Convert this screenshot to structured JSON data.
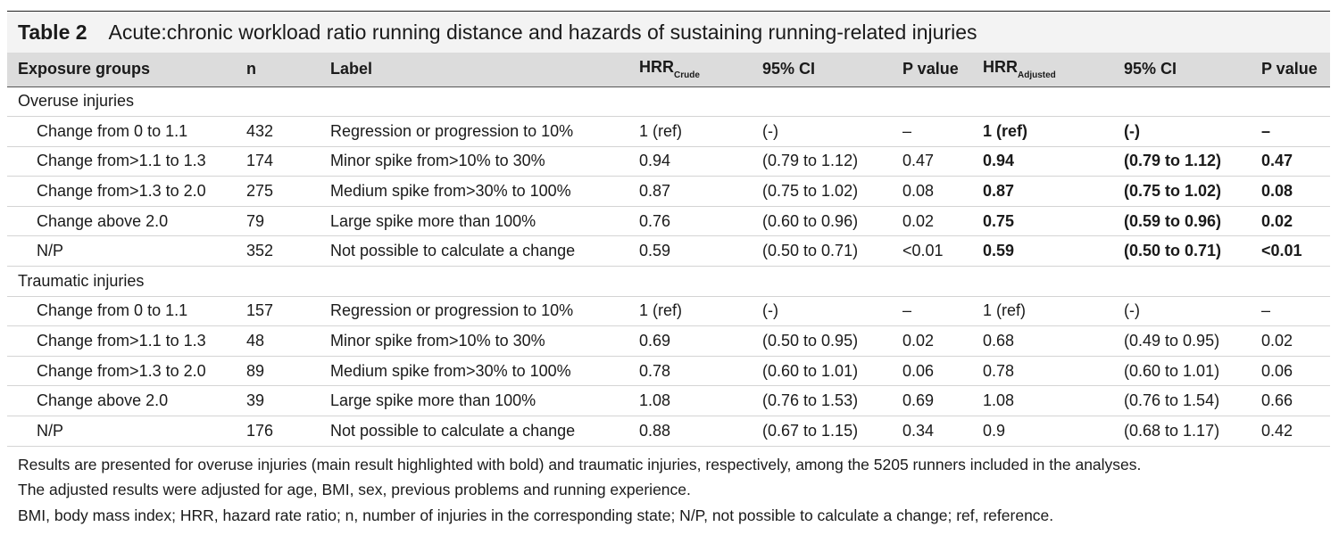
{
  "caption": {
    "label": "Table 2",
    "title": "Acute:chronic workload ratio running distance and hazards of sustaining running-related injuries"
  },
  "headers": {
    "exposure": "Exposure groups",
    "n": "n",
    "label": "Label",
    "hrr_crude": "HRR",
    "hrr_crude_sub": "Crude",
    "ci_crude": "95% CI",
    "p_crude": "P value",
    "hrr_adj": "HRR",
    "hrr_adj_sub": "Adjusted",
    "ci_adj": "95% CI",
    "p_adj": "P value"
  },
  "sections": [
    {
      "title": "Overuse injuries",
      "rows": [
        {
          "group": "Change from 0 to 1.1",
          "n": "432",
          "label": "Regression or progression to 10%",
          "hrr_crude": "1 (ref)",
          "ci_crude": "(-)",
          "p_crude": "–",
          "hrr_adj": "1 (ref)",
          "ci_adj": "(-)",
          "p_adj": "–"
        },
        {
          "group": "Change from>1.1 to 1.3",
          "n": "174",
          "label": "Minor spike from>10% to 30%",
          "hrr_crude": "0.94",
          "ci_crude": "(0.79 to 1.12)",
          "p_crude": "0.47",
          "hrr_adj": "0.94",
          "ci_adj": "(0.79 to 1.12)",
          "p_adj": "0.47"
        },
        {
          "group": "Change from>1.3 to 2.0",
          "n": "275",
          "label": "Medium spike from>30% to 100%",
          "hrr_crude": "0.87",
          "ci_crude": "(0.75 to 1.02)",
          "p_crude": "0.08",
          "hrr_adj": "0.87",
          "ci_adj": "(0.75 to 1.02)",
          "p_adj": "0.08"
        },
        {
          "group": "Change above 2.0",
          "n": "79",
          "label": "Large spike more than 100%",
          "hrr_crude": "0.76",
          "ci_crude": "(0.60 to 0.96)",
          "p_crude": "0.02",
          "hrr_adj": "0.75",
          "ci_adj": "(0.59 to 0.96)",
          "p_adj": "0.02"
        },
        {
          "group": "N/P",
          "n": "352",
          "label": "Not possible to calculate a change",
          "hrr_crude": "0.59",
          "ci_crude": "(0.50 to 0.71)",
          "p_crude": "<0.01",
          "hrr_adj": "0.59",
          "ci_adj": "(0.50 to 0.71)",
          "p_adj": "<0.01"
        }
      ]
    },
    {
      "title": "Traumatic injuries",
      "rows": [
        {
          "group": "Change from 0 to 1.1",
          "n": "157",
          "label": "Regression or progression to 10%",
          "hrr_crude": "1 (ref)",
          "ci_crude": "(-)",
          "p_crude": "–",
          "hrr_adj": "1 (ref)",
          "ci_adj": "(-)",
          "p_adj": "–"
        },
        {
          "group": "Change from>1.1 to 1.3",
          "n": "48",
          "label": "Minor spike from>10% to 30%",
          "hrr_crude": "0.69",
          "ci_crude": "(0.50 to 0.95)",
          "p_crude": "0.02",
          "hrr_adj": "0.68",
          "ci_adj": "(0.49 to 0.95)",
          "p_adj": "0.02"
        },
        {
          "group": "Change from>1.3 to 2.0",
          "n": "89",
          "label": "Medium spike from>30% to 100%",
          "hrr_crude": "0.78",
          "ci_crude": "(0.60 to 1.01)",
          "p_crude": "0.06",
          "hrr_adj": "0.78",
          "ci_adj": "(0.60 to 1.01)",
          "p_adj": "0.06"
        },
        {
          "group": "Change above 2.0",
          "n": "39",
          "label": "Large spike more than 100%",
          "hrr_crude": "1.08",
          "ci_crude": "(0.76 to 1.53)",
          "p_crude": "0.69",
          "hrr_adj": "1.08",
          "ci_adj": "(0.76 to 1.54)",
          "p_adj": "0.66"
        },
        {
          "group": "N/P",
          "n": "176",
          "label": "Not possible to calculate a change",
          "hrr_crude": "0.88",
          "ci_crude": "(0.67 to 1.15)",
          "p_crude": "0.34",
          "hrr_adj": "0.9",
          "ci_adj": "(0.68 to 1.17)",
          "p_adj": "0.42"
        }
      ]
    }
  ],
  "notes": [
    "Results are presented for overuse injuries (main result highlighted with bold) and traumatic injuries, respectively, among the 5205 runners included in the analyses.",
    "The adjusted results were adjusted for age, BMI, sex, previous problems and running experience.",
    "BMI, body mass index; HRR, hazard rate ratio; n, number of injuries in the corresponding state; N/P, not possible to calculate a change; ref, reference."
  ]
}
